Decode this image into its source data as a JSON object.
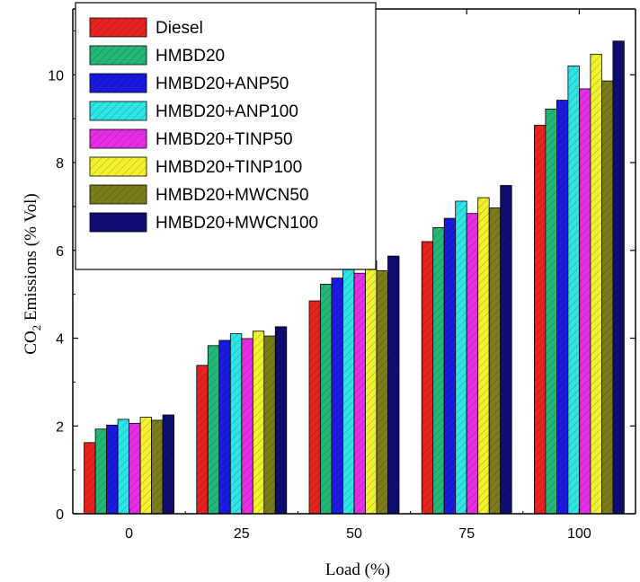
{
  "chart_data": {
    "type": "bar",
    "xlabel": "Load (%)",
    "ylabel_main": "CO",
    "ylabel_sub": "2",
    "ylabel_rest": " Emissions (% Vol)",
    "categories": [
      "0",
      "25",
      "50",
      "75",
      "100"
    ],
    "ylim": [
      0,
      11.5
    ],
    "yticks": [
      "0",
      "2",
      "4",
      "6",
      "8",
      "10"
    ],
    "legend_position": "top-left",
    "grid": false,
    "series": [
      {
        "name": "Diesel",
        "color": "#e8231f",
        "values": [
          1.62,
          3.38,
          4.85,
          6.2,
          8.85
        ]
      },
      {
        "name": "HMBD20",
        "color": "#23b877",
        "values": [
          1.93,
          3.83,
          5.23,
          6.52,
          9.22
        ]
      },
      {
        "name": "HMBD20+ANP50",
        "color": "#1a1ae0",
        "values": [
          2.02,
          3.95,
          5.37,
          6.73,
          9.42
        ]
      },
      {
        "name": "HMBD20+ANP100",
        "color": "#2ee6e6",
        "values": [
          2.15,
          4.1,
          5.62,
          7.12,
          10.2
        ]
      },
      {
        "name": "HMBD20+TINP50",
        "color": "#e62ee6",
        "values": [
          2.06,
          3.99,
          5.48,
          6.84,
          9.68
        ]
      },
      {
        "name": "HMBD20+TINP100",
        "color": "#f2f230",
        "values": [
          2.2,
          4.16,
          5.76,
          7.2,
          10.47
        ]
      },
      {
        "name": "HMBD20+MWCN50",
        "color": "#7d7d1d",
        "values": [
          2.13,
          4.05,
          5.54,
          6.97,
          9.86
        ]
      },
      {
        "name": "HMBD20+MWCN100",
        "color": "#0d0d73",
        "values": [
          2.25,
          4.26,
          5.87,
          7.48,
          10.77
        ]
      }
    ]
  }
}
